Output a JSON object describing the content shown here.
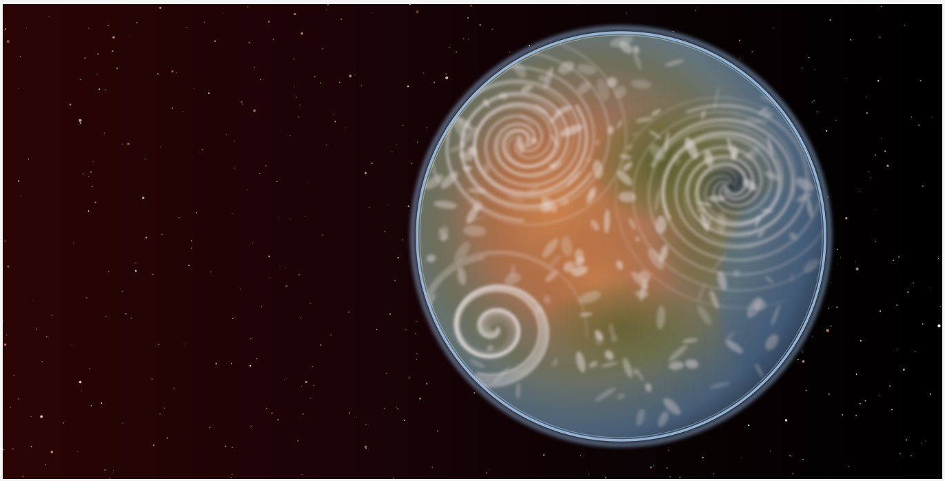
{
  "image": {
    "subject": "planet-in-space",
    "background_gradient": [
      "#2a0404",
      "#1c0306",
      "#0b0204",
      "#000000"
    ],
    "star_colors": [
      "#f0a070",
      "#ffcf9a",
      "#ffffff",
      "#d8d8e8"
    ],
    "planet_colors": {
      "rim": "#8fb4dc",
      "ocean": "#5a7fa0",
      "land_warm": "#b8703f",
      "land_green": "#5f6b34",
      "cloud": "#e6dede",
      "shadow": "#26323f"
    }
  }
}
